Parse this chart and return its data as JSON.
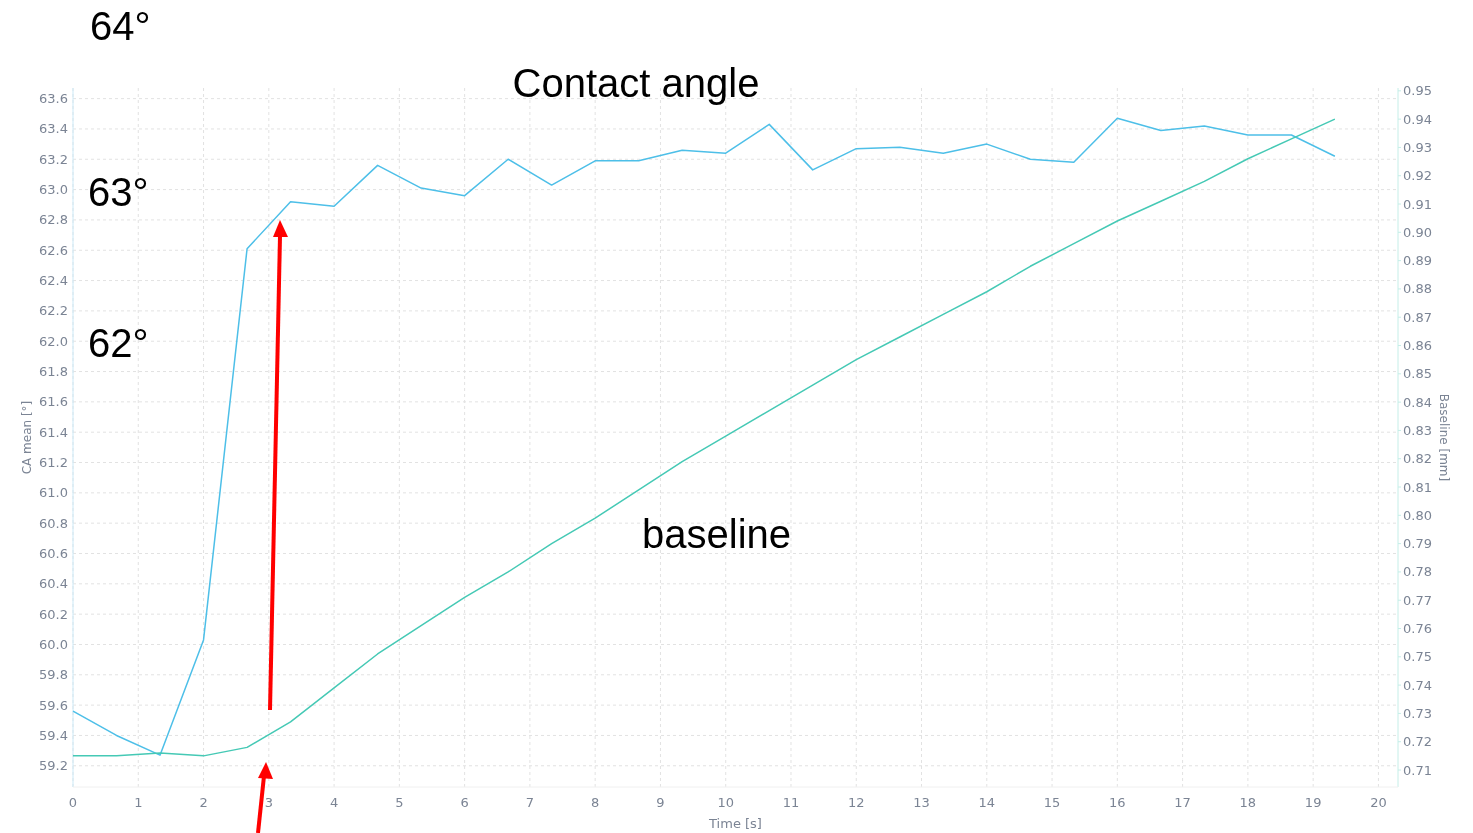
{
  "chart_data": {
    "type": "line",
    "title": "Contact angle",
    "xlabel": "Time [s]",
    "ylabel": "CA mean [°]",
    "y2label": "Baseline [mm]",
    "annotations": [
      "64°",
      "63°",
      "62°",
      "baseline"
    ],
    "x": [
      0,
      0.667,
      1.333,
      2,
      2.667,
      3.333,
      4,
      4.667,
      5.333,
      6,
      6.667,
      7.333,
      8,
      8.667,
      9.333,
      10,
      10.667,
      11.333,
      12,
      12.667,
      13.333,
      14,
      14.667,
      15.333,
      16,
      16.667,
      17.333,
      18,
      18.667,
      19.333
    ],
    "series": [
      {
        "color": "#4dbfe8",
        "values": [
          59.56,
          59.4,
          59.27,
          60.03,
          62.61,
          62.92,
          62.89,
          63.16,
          63.01,
          62.96,
          63.2,
          63.03,
          63.19,
          63.19,
          63.26,
          63.24,
          63.43,
          63.13,
          63.27,
          63.28,
          63.24,
          63.3,
          63.2,
          63.18,
          63.47,
          63.39,
          63.42,
          63.36,
          63.36,
          63.22
        ]
      },
      {
        "color": "#45c9b5",
        "axis": "y2",
        "values": [
          0.715,
          0.715,
          0.716,
          0.715,
          0.718,
          0.727,
          0.739,
          0.751,
          0.761,
          0.771,
          0.78,
          0.79,
          0.799,
          0.809,
          0.819,
          0.828,
          0.837,
          0.846,
          0.855,
          0.863,
          0.871,
          0.879,
          0.888,
          0.896,
          0.904,
          0.911,
          0.918,
          0.926,
          0.933,
          0.94
        ]
      }
    ],
    "xlim": [
      0,
      20.3
    ],
    "xticks": [
      0,
      1,
      2,
      3,
      4,
      5,
      6,
      7,
      8,
      9,
      10,
      11,
      12,
      13,
      14,
      15,
      16,
      17,
      18,
      19,
      20
    ],
    "ylim": [
      59.06,
      63.67
    ],
    "yticks": [
      59.2,
      59.4,
      59.6,
      59.8,
      {
        "value": 60,
        "label": "60.0"
      },
      60.2,
      60.4,
      60.6,
      60.8,
      {
        "value": 61,
        "label": "61.0"
      },
      61.2,
      61.4,
      61.6,
      61.8,
      {
        "value": 62,
        "label": "62.0"
      },
      62.2,
      62.4,
      62.6,
      62.8,
      {
        "value": 63,
        "label": "63.0"
      },
      63.2,
      63.4,
      63.6
    ],
    "y2lim": [
      0.704,
      0.951
    ],
    "y2ticks": [
      0.71,
      0.72,
      0.73,
      0.74,
      0.75,
      0.76,
      0.77,
      0.78,
      0.79,
      {
        "value": 0.8,
        "label": "0.80"
      },
      0.81,
      0.82,
      0.83,
      0.84,
      0.85,
      0.86,
      0.87,
      0.88,
      0.89,
      {
        "value": 0.9,
        "label": "0.90"
      },
      0.91,
      0.92,
      0.93,
      0.94,
      0.95
    ],
    "grid": true,
    "marker": "none",
    "line_style": "solid"
  }
}
